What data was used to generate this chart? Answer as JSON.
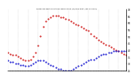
{
  "title": "Milwaukee Weather Outdoor Temperature (vs) Dew Point (Last 24 Hours)",
  "temp_color": "#cc0000",
  "dew_color": "#0000cc",
  "background_color": "#ffffff",
  "ylim": [
    25,
    70
  ],
  "ytick_labels": [
    "70",
    "65",
    "60",
    "55",
    "50",
    "45",
    "40",
    "35",
    "30",
    "25"
  ],
  "ytick_values": [
    70,
    65,
    60,
    55,
    50,
    45,
    40,
    35,
    30,
    25
  ],
  "num_points": 48,
  "temp_data": [
    38,
    37,
    36,
    36,
    35,
    34,
    33,
    32,
    32,
    33,
    35,
    38,
    43,
    50,
    57,
    61,
    63,
    64,
    65,
    65,
    65,
    64,
    64,
    63,
    62,
    61,
    60,
    59,
    58,
    57,
    56,
    55,
    54,
    52,
    50,
    49,
    47,
    46,
    45,
    44,
    43,
    42,
    41,
    40,
    39,
    38,
    37,
    36
  ],
  "dew_data": [
    32,
    31,
    31,
    30,
    30,
    29,
    29,
    28,
    28,
    29,
    30,
    31,
    32,
    32,
    32,
    31,
    30,
    29,
    28,
    27,
    26,
    26,
    25,
    25,
    25,
    25,
    26,
    27,
    28,
    29,
    30,
    31,
    32,
    33,
    33,
    34,
    35,
    36,
    37,
    37,
    38,
    38,
    39,
    39,
    39,
    39,
    39,
    39
  ]
}
